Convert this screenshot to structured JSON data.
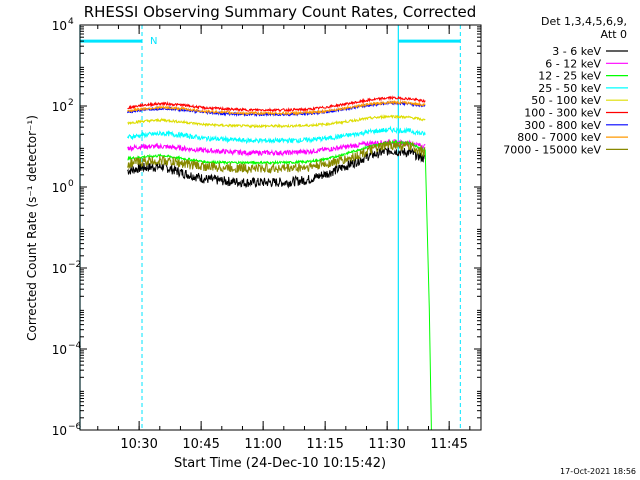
{
  "chart_data": {
    "type": "line",
    "title": "RHESSI Observing Summary Count Rates, Corrected",
    "xlabel": "Start Time (24-Dec-10 10:15:42)",
    "ylabel": "Corrected Count Rate (s⁻¹ detector⁻¹)",
    "ylim": [
      1e-06,
      10000.0
    ],
    "yscale": "log",
    "xlim_minutes": [
      0,
      97
    ],
    "x_ticks": [
      "10:30",
      "10:45",
      "11:00",
      "11:15",
      "11:30",
      "11:45"
    ],
    "x_tick_minutes": [
      14.3,
      29.3,
      44.3,
      59.3,
      74.3,
      89.3
    ],
    "y_ticks": [
      {
        "mant": "10",
        "exp": "4"
      },
      {
        "mant": "10",
        "exp": "2"
      },
      {
        "mant": "10",
        "exp": "0"
      },
      {
        "mant": "10",
        "exp": "−2"
      },
      {
        "mant": "10",
        "exp": "−4"
      },
      {
        "mant": "10",
        "exp": "−6"
      }
    ],
    "y_tick_exponents": [
      4,
      2,
      0,
      -2,
      -4,
      -6
    ],
    "legend_title": [
      "Det 1,3,4,5,6,9,",
      "Att 0"
    ],
    "legend_position": "right",
    "night_marker": "N",
    "timestamp": "17-Oct-2021 18:56",
    "series": [
      {
        "name": "3 - 6 keV",
        "color": "#000000",
        "x": [
          11.5,
          15,
          20,
          25,
          30,
          35,
          40,
          45,
          50,
          55,
          60,
          65,
          70,
          75,
          80,
          83.5
        ],
        "y": [
          2.5,
          3,
          3.2,
          2.2,
          1.6,
          1.4,
          1.3,
          1.3,
          1.3,
          1.5,
          2.2,
          3.5,
          6,
          8,
          7,
          5
        ]
      },
      {
        "name": "6 - 12 keV",
        "color": "#ff00ff",
        "x": [
          11.5,
          15,
          20,
          25,
          30,
          35,
          40,
          45,
          50,
          55,
          60,
          65,
          70,
          75,
          80,
          83.5
        ],
        "y": [
          9,
          10,
          10,
          9,
          8,
          7.5,
          7,
          7,
          7,
          7.5,
          8.5,
          10,
          12,
          13,
          12,
          10
        ]
      },
      {
        "name": "12 - 25 keV",
        "color": "#00ff00",
        "x": [
          11.5,
          15,
          20,
          25,
          30,
          35,
          40,
          45,
          50,
          55,
          60,
          65,
          70,
          75,
          80,
          83.5,
          84.5,
          85,
          85.5
        ],
        "y": [
          5,
          5.5,
          6,
          5,
          4.2,
          4,
          4,
          4,
          4,
          4.2,
          5,
          7,
          10,
          13,
          12,
          8,
          0.001,
          1e-06,
          1e-06
        ]
      },
      {
        "name": "25 - 50 keV",
        "color": "#00ffff",
        "x": [
          11.5,
          15,
          20,
          25,
          30,
          35,
          40,
          45,
          50,
          55,
          60,
          65,
          70,
          75,
          80,
          83.5
        ],
        "y": [
          17,
          19,
          21,
          19,
          16,
          15,
          14,
          14,
          14,
          14.5,
          16,
          19,
          23,
          26,
          24,
          20
        ]
      },
      {
        "name": "50 - 100 keV",
        "color": "#dddd00",
        "x": [
          11.5,
          15,
          20,
          25,
          30,
          35,
          40,
          45,
          50,
          55,
          60,
          65,
          70,
          75,
          80,
          83.5
        ],
        "y": [
          38,
          42,
          45,
          40,
          35,
          33,
          32,
          32,
          32,
          33,
          36,
          42,
          50,
          56,
          52,
          45
        ]
      },
      {
        "name": "100 - 300 keV",
        "color": "#ff0000",
        "x": [
          11.5,
          15,
          20,
          25,
          30,
          35,
          40,
          45,
          50,
          55,
          60,
          65,
          70,
          75,
          80,
          83.5
        ],
        "y": [
          90,
          105,
          115,
          105,
          90,
          85,
          80,
          80,
          80,
          82,
          95,
          115,
          140,
          160,
          150,
          130
        ]
      },
      {
        "name": "300 - 800 keV",
        "color": "#0000ff",
        "x": [
          11.5,
          15,
          20,
          25,
          30,
          35,
          40,
          45,
          50,
          55,
          60,
          65,
          70,
          75,
          80,
          83.5
        ],
        "y": [
          70,
          80,
          88,
          80,
          70,
          65,
          62,
          62,
          62,
          64,
          72,
          88,
          105,
          120,
          112,
          100
        ]
      },
      {
        "name": "800 - 7000 keV",
        "color": "#ff9900",
        "x": [
          11.5,
          15,
          20,
          25,
          30,
          35,
          40,
          45,
          50,
          55,
          60,
          65,
          70,
          75,
          80,
          83.5
        ],
        "y": [
          75,
          85,
          92,
          85,
          74,
          69,
          66,
          66,
          66,
          68,
          76,
          92,
          110,
          125,
          118,
          105
        ]
      },
      {
        "name": "7000 - 15000 keV",
        "color": "#888800",
        "x": [
          11.5,
          15,
          20,
          25,
          30,
          35,
          40,
          45,
          50,
          55,
          60,
          65,
          70,
          75,
          80,
          83.5
        ],
        "y": [
          3.8,
          4.2,
          4.5,
          3.8,
          3.2,
          3,
          2.9,
          2.9,
          2.9,
          3.1,
          3.8,
          5,
          8,
          11,
          10,
          7
        ]
      }
    ],
    "saa_segments": [
      {
        "x": [
          0,
          15
        ],
        "y": 4000
      },
      {
        "x": [
          77,
          92
        ],
        "y": 4000
      }
    ],
    "cyan_vlines_solid": [
      0,
      77
    ],
    "cyan_vlines_dashed": [
      15,
      92
    ]
  }
}
